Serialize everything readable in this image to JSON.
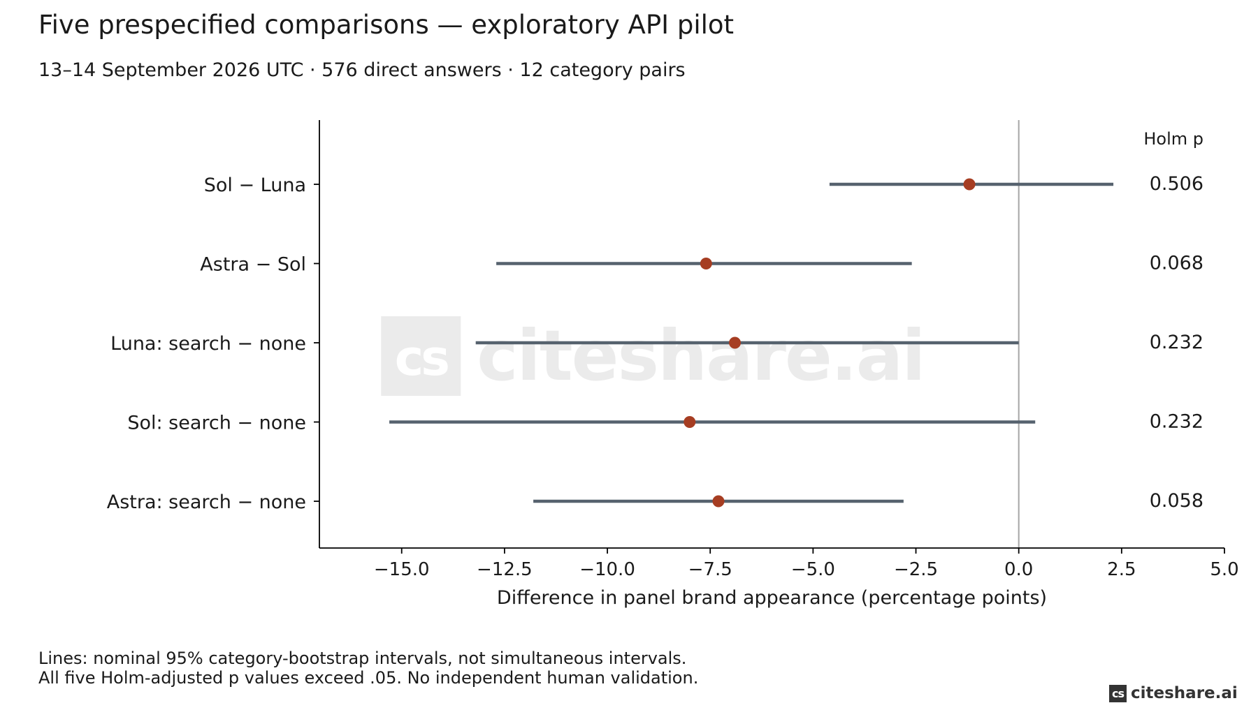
{
  "title": "Five prespecified comparisons — exploratory API pilot",
  "subtitle": "13–14 September 2026 UTC · 576 direct answers · 12 category pairs",
  "notes": {
    "line1": "Lines: nominal 95% category-bootstrap intervals, not simultaneous intervals.",
    "line2": "All five Holm-adjusted p values exceed .05. No independent human validation."
  },
  "watermark": {
    "mark": "cs",
    "text": "citeshare.ai"
  },
  "brand": {
    "mark": "cs",
    "text": "citeshare.ai"
  },
  "colors": {
    "point": "#a63d22",
    "interval": "#56626e",
    "zero_line": "#a6a6a6",
    "axis": "#000000",
    "watermark": "#d9d9d9"
  },
  "chart_data": {
    "type": "forest",
    "xlabel": "Difference in panel brand appearance (percentage points)",
    "xlim": [
      -17,
      5
    ],
    "xticks": [
      -15.0,
      -12.5,
      -10.0,
      -7.5,
      -5.0,
      -2.5,
      0.0,
      2.5,
      5.0
    ],
    "xtick_labels": [
      "−15.0",
      "−12.5",
      "−10.0",
      "−7.5",
      "−5.0",
      "−2.5",
      "0.0",
      "2.5",
      "5.0"
    ],
    "reference_line": 0,
    "p_header": "Holm p",
    "rows": [
      {
        "label": "Sol − Luna",
        "estimate": -1.2,
        "lower": -4.6,
        "upper": 2.3,
        "p": "0.506"
      },
      {
        "label": "Astra − Sol",
        "estimate": -7.6,
        "lower": -12.7,
        "upper": -2.6,
        "p": "0.068"
      },
      {
        "label": "Luna: search − none",
        "estimate": -6.9,
        "lower": -13.2,
        "upper": 0.0,
        "p": "0.232"
      },
      {
        "label": "Sol: search − none",
        "estimate": -8.0,
        "lower": -15.3,
        "upper": 0.4,
        "p": "0.232"
      },
      {
        "label": "Astra: search − none",
        "estimate": -7.3,
        "lower": -11.8,
        "upper": -2.8,
        "p": "0.058"
      }
    ]
  }
}
